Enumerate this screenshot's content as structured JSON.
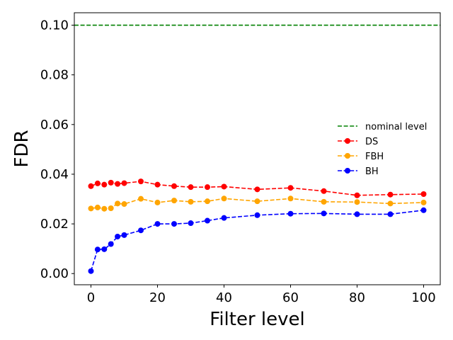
{
  "chart_data": {
    "type": "line",
    "xlabel": "Filter level",
    "ylabel": "FDR",
    "xlim": [
      -5,
      105
    ],
    "ylim": [
      -0.0045,
      0.105
    ],
    "xticks": [
      0,
      20,
      40,
      60,
      80,
      100
    ],
    "xtick_labels": [
      "0",
      "20",
      "40",
      "60",
      "80",
      "100"
    ],
    "yticks": [
      0.0,
      0.02,
      0.04,
      0.06,
      0.08,
      0.1
    ],
    "ytick_labels": [
      "0.00",
      "0.02",
      "0.04",
      "0.06",
      "0.08",
      "0.10"
    ],
    "grid": false,
    "legend_position": "center-right",
    "x": [
      0,
      2,
      4,
      6,
      8,
      10,
      15,
      20,
      25,
      30,
      35,
      40,
      50,
      60,
      70,
      80,
      90,
      100
    ],
    "nominal_level": {
      "name": "nominal level",
      "value": 0.1,
      "color": "#008000",
      "style": "dashed"
    },
    "series": [
      {
        "name": "DS",
        "color": "#ff0000",
        "values": [
          0.0352,
          0.0363,
          0.0358,
          0.0366,
          0.0361,
          0.0364,
          0.0371,
          0.0358,
          0.0352,
          0.0348,
          0.0348,
          0.035,
          0.0339,
          0.0345,
          0.0332,
          0.0315,
          0.0318,
          0.032
        ]
      },
      {
        "name": "FBH",
        "color": "#ffa500",
        "values": [
          0.0262,
          0.0266,
          0.0261,
          0.0263,
          0.0282,
          0.028,
          0.0301,
          0.0286,
          0.0294,
          0.0289,
          0.0291,
          0.0302,
          0.0291,
          0.0302,
          0.0289,
          0.0288,
          0.0282,
          0.0286
        ]
      },
      {
        "name": "BH",
        "color": "#0000ff",
        "values": [
          0.001,
          0.0097,
          0.0098,
          0.0119,
          0.0149,
          0.0155,
          0.0174,
          0.02,
          0.02,
          0.0203,
          0.0213,
          0.0224,
          0.0235,
          0.0241,
          0.0242,
          0.0239,
          0.0239,
          0.0255
        ]
      }
    ]
  }
}
